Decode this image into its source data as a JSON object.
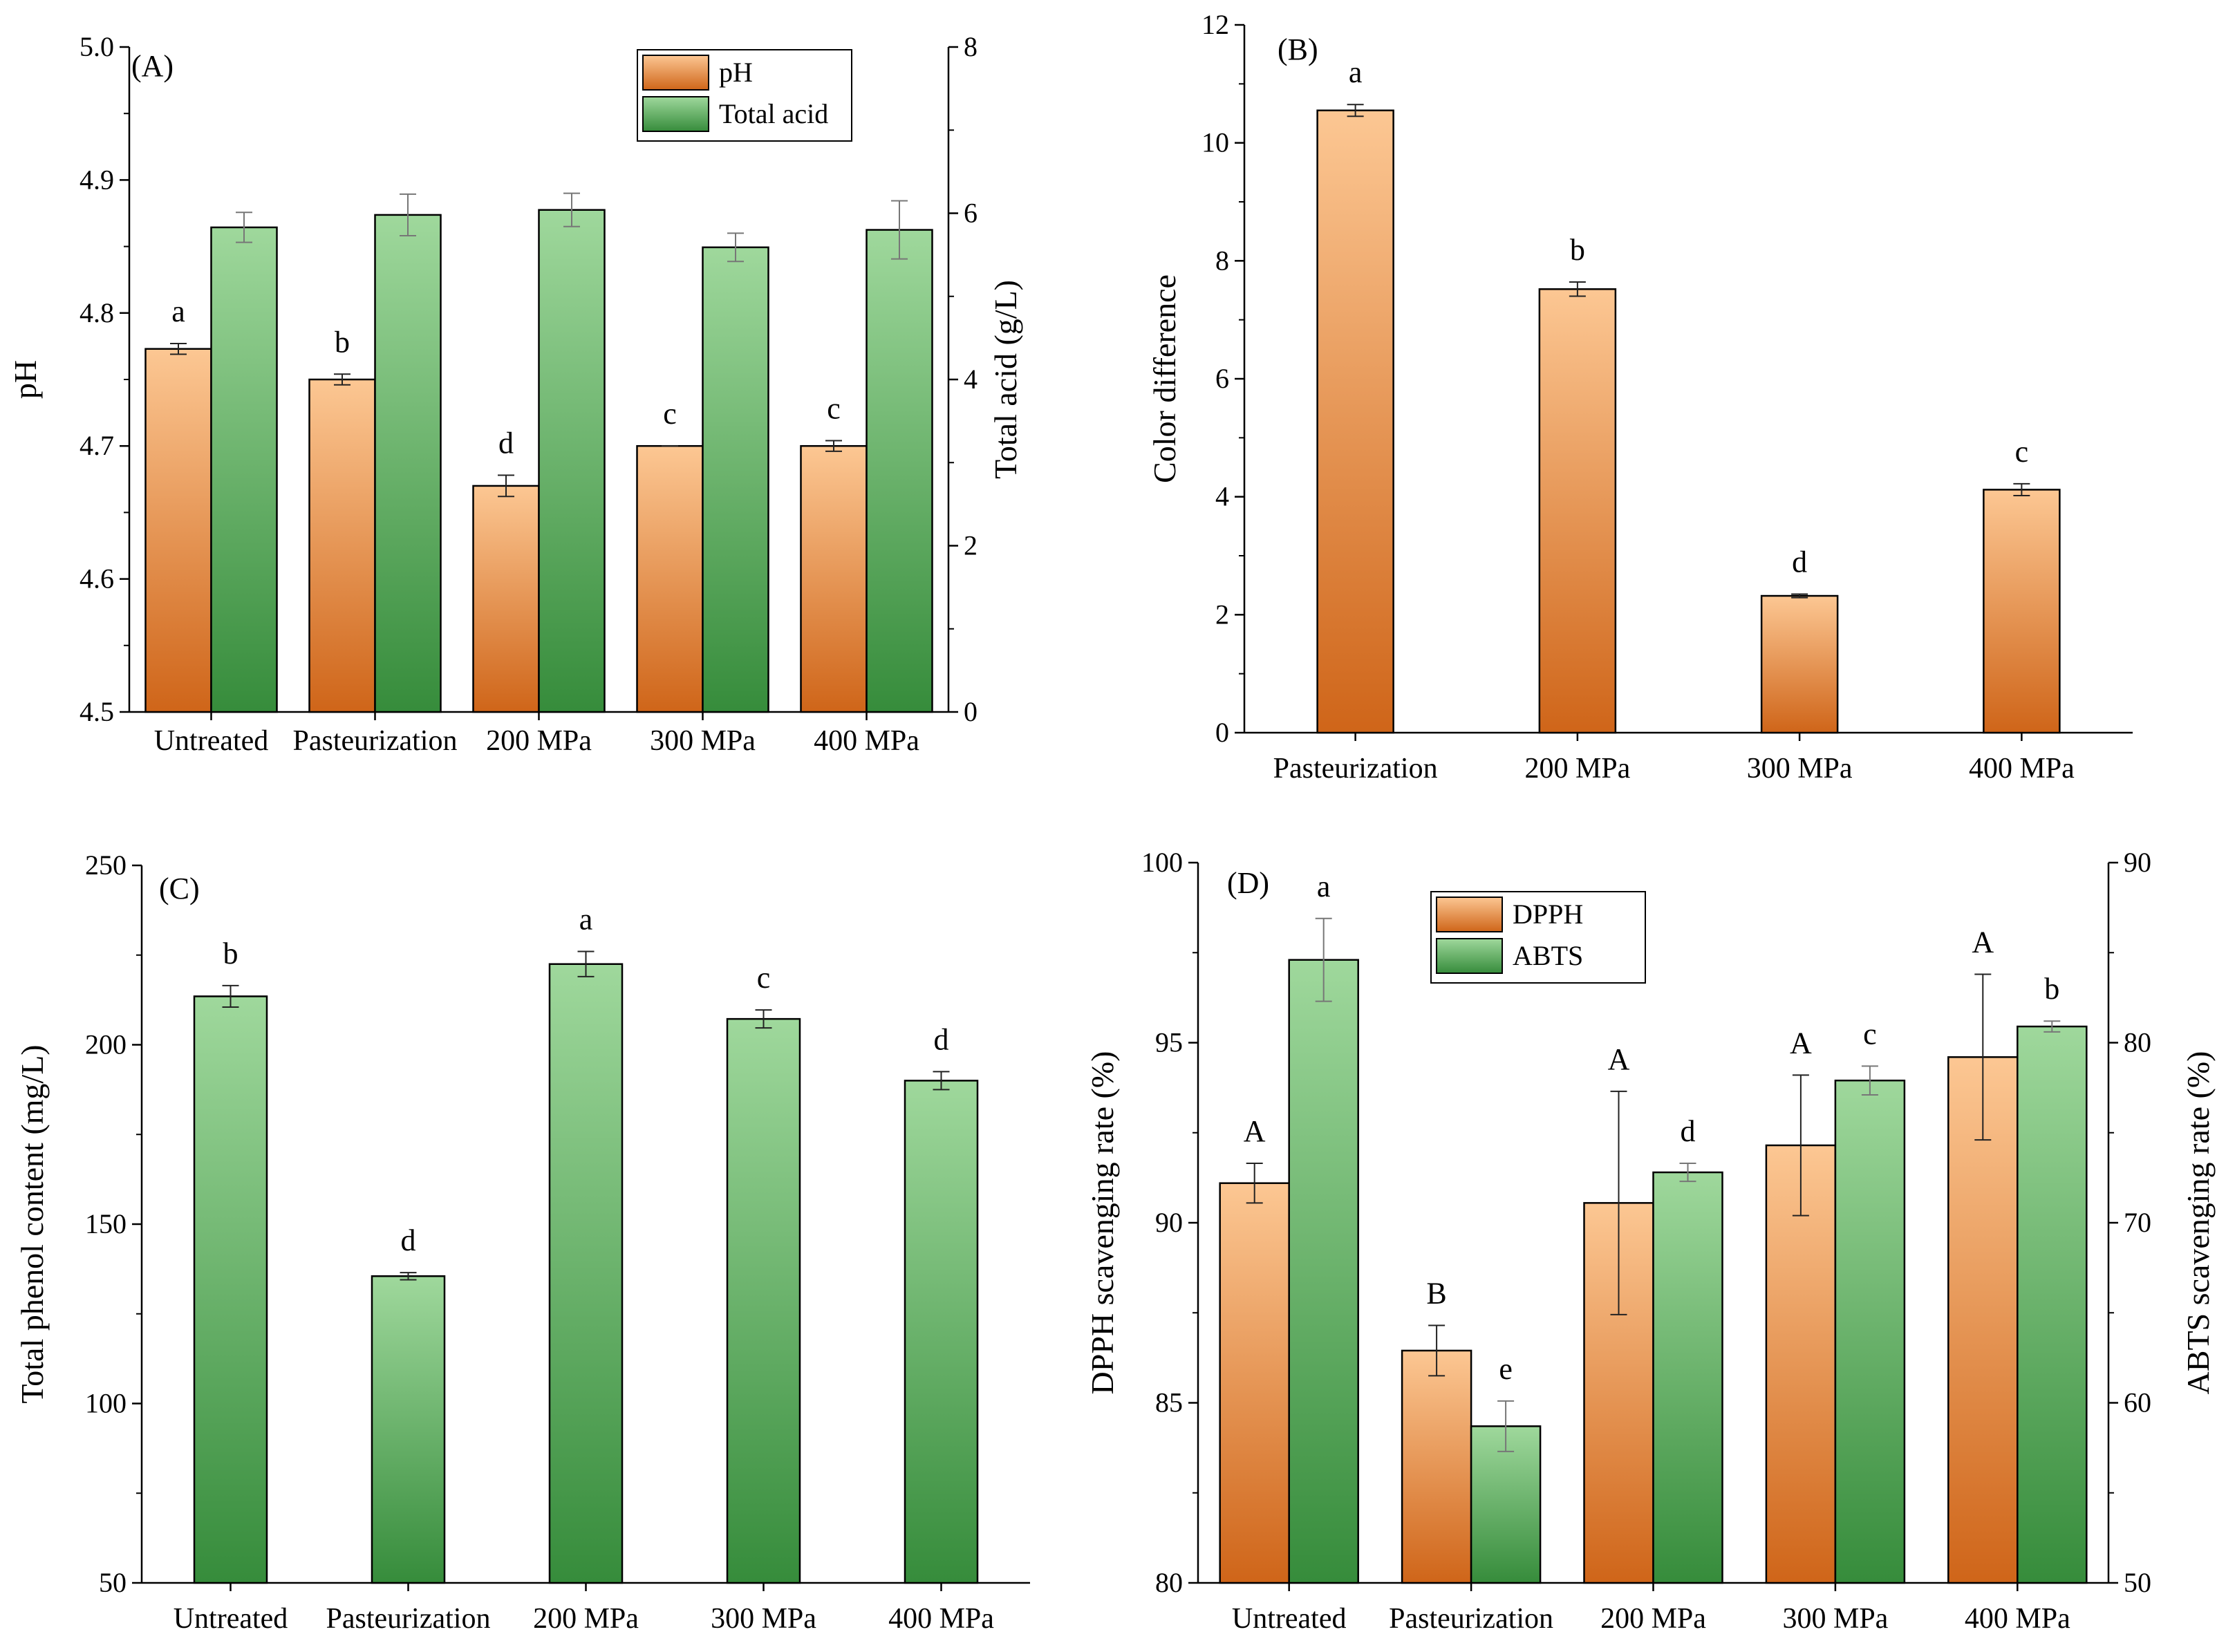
{
  "colors": {
    "orange_light": "#fcc793",
    "orange_dark": "#cf6519",
    "green_light": "#9fd89c",
    "green_dark": "#368c3b"
  },
  "chart_data": [
    {
      "panel": "(A)",
      "type": "bar",
      "categories": [
        "Untreated",
        "Pasteurization",
        "200 MPa",
        "300 MPa",
        "400 MPa"
      ],
      "ylabel": "pH",
      "ylabel_right": "Total acid (g/L)",
      "ylim": [
        4.5,
        5.0
      ],
      "yticks": [
        "4.5",
        "4.6",
        "4.7",
        "4.8",
        "4.9",
        "5.0"
      ],
      "ylim_right": [
        0,
        8
      ],
      "yticks_right": [
        "0",
        "2",
        "4",
        "6",
        "8"
      ],
      "legend": [
        "pH",
        "Total acid"
      ],
      "legend_position": "top-right",
      "series": [
        {
          "name": "pH",
          "axis": "left",
          "gradient": "orange",
          "values": [
            4.773,
            4.75,
            4.67,
            4.7,
            4.7
          ],
          "errors": [
            0.004,
            0.004,
            0.008,
            0.0,
            0.004
          ],
          "labels": [
            "a",
            "b",
            "d",
            "c",
            "c"
          ]
        },
        {
          "name": "Total acid",
          "axis": "right",
          "gradient": "green",
          "values": [
            5.83,
            5.98,
            6.04,
            5.59,
            5.8
          ],
          "errors": [
            0.18,
            0.25,
            0.2,
            0.17,
            0.35
          ],
          "labels": []
        }
      ]
    },
    {
      "panel": "(B)",
      "type": "bar",
      "categories": [
        "Pasteurization",
        "200 MPa",
        "300 MPa",
        "400 MPa"
      ],
      "ylabel": "Color difference",
      "ylim": [
        0,
        12
      ],
      "yticks": [
        "0",
        "2",
        "4",
        "6",
        "8",
        "10",
        "12"
      ],
      "series": [
        {
          "name": "Color difference",
          "axis": "left",
          "gradient": "orange",
          "values": [
            10.55,
            7.52,
            2.32,
            4.12
          ],
          "errors": [
            0.1,
            0.12,
            0.03,
            0.1
          ],
          "labels": [
            "a",
            "b",
            "d",
            "c"
          ]
        }
      ]
    },
    {
      "panel": "(C)",
      "type": "bar",
      "categories": [
        "Untreated",
        "Pasteurization",
        "200 MPa",
        "300 MPa",
        "400 MPa"
      ],
      "ylabel": "Total phenol content (mg/L)",
      "ylim": [
        50,
        250
      ],
      "yticks": [
        "50",
        "100",
        "150",
        "200",
        "250"
      ],
      "series": [
        {
          "name": "Total phenol content",
          "axis": "left",
          "gradient": "green",
          "values": [
            213.5,
            135.5,
            222.5,
            207.2,
            190.0
          ],
          "errors": [
            3.0,
            1.0,
            3.5,
            2.5,
            2.5
          ],
          "labels": [
            "b",
            "d",
            "a",
            "c",
            "d"
          ]
        }
      ]
    },
    {
      "panel": "(D)",
      "type": "bar",
      "categories": [
        "Untreated",
        "Pasteurization",
        "200 MPa",
        "300 MPa",
        "400 MPa"
      ],
      "ylabel": "DPPH scavenging rate (%)",
      "ylabel_right": "ABTS scavenging rate (%)",
      "ylim": [
        80,
        100
      ],
      "yticks": [
        "80",
        "85",
        "90",
        "95",
        "100"
      ],
      "ylim_right": [
        50,
        90
      ],
      "yticks_right": [
        "50",
        "60",
        "70",
        "80",
        "90"
      ],
      "legend": [
        "DPPH",
        "ABTS"
      ],
      "legend_position": "top-left",
      "series": [
        {
          "name": "DPPH",
          "axis": "left",
          "gradient": "orange",
          "values": [
            91.1,
            86.45,
            90.55,
            92.15,
            94.6
          ],
          "errors": [
            0.55,
            0.7,
            3.1,
            1.95,
            2.3
          ],
          "labels": [
            "A",
            "B",
            "A",
            "A",
            "A"
          ]
        },
        {
          "name": "ABTS",
          "axis": "right",
          "gradient": "green",
          "values": [
            84.6,
            58.7,
            72.8,
            77.9,
            80.9
          ],
          "errors": [
            2.3,
            1.4,
            0.5,
            0.8,
            0.3
          ],
          "labels": [
            "a",
            "e",
            "d",
            "c",
            "b"
          ]
        }
      ]
    }
  ]
}
